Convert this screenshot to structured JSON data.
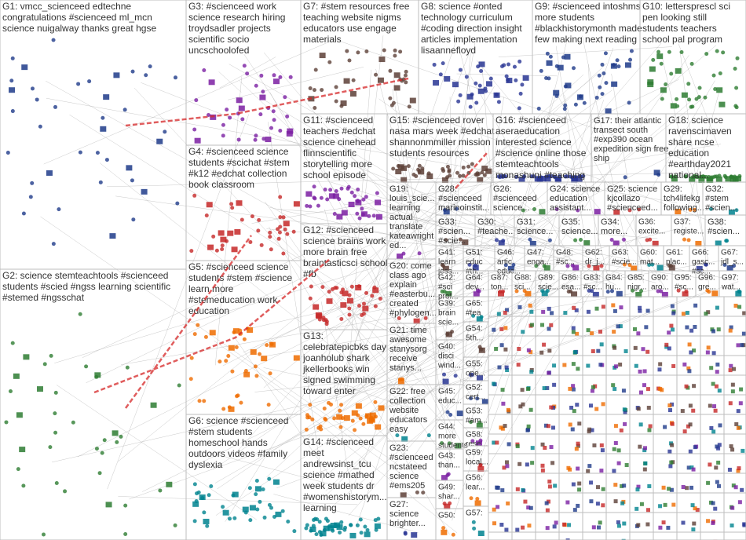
{
  "groups": [
    {
      "lines": [
        "G1: vmcc_scienceed edtechne",
        "congratulations #scienceed ml_mcn",
        "science nuigalway thanks great hgse"
      ]
    },
    {
      "lines": [
        "G2: science stemteachtools #scienceed",
        "students #scied #ngss learning scientific",
        "#stemed #ngsschat"
      ]
    },
    {
      "lines": [
        "G3: #scienceed work",
        "science research hiring",
        "troydsadler projects",
        "scientific socio",
        "uncschoolofed"
      ]
    },
    {
      "lines": [
        "G4: #scienceed science",
        "students #scichat #stem",
        "#k12 #edchat collection",
        "book classroom"
      ]
    },
    {
      "lines": [
        "G5: #scienceed science",
        "students #stem #science",
        "learn more",
        "#stemeducation work",
        "education"
      ]
    },
    {
      "lines": [
        "G6: science #scienceed",
        "#stem students",
        "homeschool hands",
        "outdoors videos #family",
        "dyslexia"
      ]
    },
    {
      "lines": [
        "G7: #stem resources free",
        "teaching website nigms",
        "educators use engage",
        "materials"
      ]
    },
    {
      "lines": [
        "G8: science #onted",
        "technology curriculum",
        "#coding direction insight",
        "articles implementation",
        "lisaannefloyd"
      ]
    },
    {
      "lines": [
        "G9: #scienceed intoshms",
        "more students",
        "#blackhistorymonth made",
        "few making next reading"
      ]
    },
    {
      "lines": [
        "G10: lettersprescl sci",
        "pen looking still",
        "students teachers",
        "school pal program"
      ]
    },
    {
      "lines": [
        "G11: #scienceed",
        "teachers #edchat",
        "science cinehead",
        "flinnscientific",
        "storytelling more",
        "school episode"
      ]
    },
    {
      "lines": [
        "G12: #scienceed",
        "science brains work",
        "more brain free",
        "braintasticsci school",
        "#fb"
      ]
    },
    {
      "lines": [
        "G13:",
        "celebratepicbks day",
        "joanholub shark",
        "jkellerbooks win",
        "signed swimming",
        "toward enter"
      ]
    },
    {
      "lines": [
        "G14: #scienceed",
        "meet",
        "andrewsinst_tcu",
        "science #mathed",
        "week students dr",
        "#womenshistorym...",
        "learning"
      ]
    },
    {
      "lines": [
        "G15: #scienceed rover",
        "nasa mars week #edchat",
        "shannonmmiller mission",
        "students resources"
      ]
    },
    {
      "lines": [
        "G16: #scienceed",
        "aseraeducation",
        "interested science",
        "#science online those",
        "stemteachtools",
        "monashuni #teaching"
      ]
    },
    {
      "lines": [
        "G17: their atlantic",
        "transect south",
        "#exp390 ocean",
        "expedition sign free",
        "ship"
      ]
    },
    {
      "lines": [
        "G18: science",
        "ravenscimaven",
        "share ncse",
        "education",
        "#earthday2021",
        "national..."
      ]
    },
    {
      "lines": [
        "G19:",
        "louis_scie...",
        "learning",
        "actual",
        "translate",
        "kateawright",
        "ed..."
      ]
    },
    {
      "lines": [
        "G20: come",
        "class ago",
        "explain",
        "#easterbu...",
        "created",
        "#phylogen..."
      ]
    },
    {
      "lines": [
        "G21: time",
        "awesome",
        "stanysorg",
        "receive",
        "stanys..."
      ]
    },
    {
      "lines": [
        "G22: free",
        "collection",
        "website",
        "educators",
        "easy"
      ]
    },
    {
      "lines": [
        "G23:",
        "#scienceed",
        "ncstateed",
        "science",
        "#ems205"
      ]
    },
    {
      "lines": [
        "G27:",
        "science",
        "brighter..."
      ]
    },
    {
      "lines": [
        "G28:",
        "#scienceed",
        "marinoinstit..."
      ]
    },
    {
      "lines": [
        "G26:",
        "#scienceed",
        "science..."
      ]
    },
    {
      "lines": [
        "G24: science",
        "education",
        "assistant..."
      ]
    },
    {
      "lines": [
        "G25: science",
        "kjcollazo",
        "#scienceed..."
      ]
    },
    {
      "lines": [
        "G29:",
        "tch4lifekg",
        "following..."
      ]
    },
    {
      "lines": [
        "G32:",
        "#stem",
        "#scien..."
      ]
    },
    {
      "lines": [
        "G33:",
        "#scien...",
        "#scie..."
      ]
    },
    {
      "lines": [
        "G30:",
        "#teache..."
      ]
    },
    {
      "lines": [
        "G31:",
        "science..."
      ]
    },
    {
      "lines": [
        "G35:",
        "science..."
      ]
    },
    {
      "lines": [
        "G34:",
        "more..."
      ]
    },
    {
      "lines": [
        "G36:",
        "excite..."
      ]
    },
    {
      "lines": [
        "G37:",
        "registe..."
      ]
    },
    {
      "lines": [
        "G38:",
        "#scien..."
      ]
    },
    {
      "lines": [
        "G41:",
        "learn",
        "jess..."
      ]
    },
    {
      "lines": [
        "G51:",
        "educ",
        "#th..."
      ]
    },
    {
      "lines": [
        "G46:",
        "artic",
        "educ..."
      ]
    },
    {
      "lines": [
        "G47:",
        "enga..."
      ]
    },
    {
      "lines": [
        "G48:",
        "#sc..."
      ]
    },
    {
      "lines": [
        "G62:",
        "dr_j..."
      ]
    },
    {
      "lines": [
        "G63:",
        "#scie..."
      ]
    },
    {
      "lines": [
        "G60:",
        "mat..."
      ]
    },
    {
      "lines": [
        "G61:",
        "plac..."
      ]
    },
    {
      "lines": [
        "G66:",
        "gasc...",
        "#sc..."
      ]
    },
    {
      "lines": [
        "G67:",
        "jdl_s..."
      ]
    },
    {
      "lines": [
        "G42:",
        "#sci",
        "prof..."
      ]
    },
    {
      "lines": [
        "G64:",
        "dev..."
      ]
    },
    {
      "lines": [
        "G87:",
        "ton..."
      ]
    },
    {
      "lines": [
        "G88:",
        "sci..."
      ]
    },
    {
      "lines": [
        "G89:",
        "scie..."
      ]
    },
    {
      "lines": [
        "G86:",
        "esa..."
      ]
    },
    {
      "lines": [
        "G83:",
        "#sc..."
      ]
    },
    {
      "lines": [
        "G84:",
        "hu..."
      ]
    },
    {
      "lines": [
        "G85:",
        "nigr..."
      ]
    },
    {
      "lines": [
        "G90:",
        "aro..."
      ]
    },
    {
      "lines": [
        "G95:",
        "#sc..."
      ]
    },
    {
      "lines": [
        "G96:",
        "gre..."
      ]
    },
    {
      "lines": [
        "G97:",
        "wat..."
      ]
    },
    {
      "lines": [
        "G39:",
        "brain",
        "scie..."
      ]
    },
    {
      "lines": [
        "G40:",
        "disci",
        "wind..."
      ]
    },
    {
      "lines": [
        "G45:",
        "educ..."
      ]
    },
    {
      "lines": [
        "G44:",
        "more",
        "students"
      ]
    },
    {
      "lines": [
        "G43:",
        "than..."
      ]
    },
    {
      "lines": [
        "G49:",
        "shar..."
      ]
    },
    {
      "lines": [
        "G50:"
      ]
    },
    {
      "lines": [
        "G65:",
        "#tea"
      ]
    },
    {
      "lines": [
        "G54:",
        "5th..."
      ]
    },
    {
      "lines": [
        "G55:",
        "ope..."
      ]
    },
    {
      "lines": [
        "G52:",
        "cert..."
      ]
    },
    {
      "lines": [
        "G53:",
        "#am..."
      ]
    },
    {
      "lines": [
        "G58:",
        "rese..."
      ]
    },
    {
      "lines": [
        "G59:",
        "local..."
      ]
    },
    {
      "lines": [
        "G56:",
        "lear..."
      ]
    },
    {
      "lines": [
        "G57:"
      ]
    }
  ]
}
